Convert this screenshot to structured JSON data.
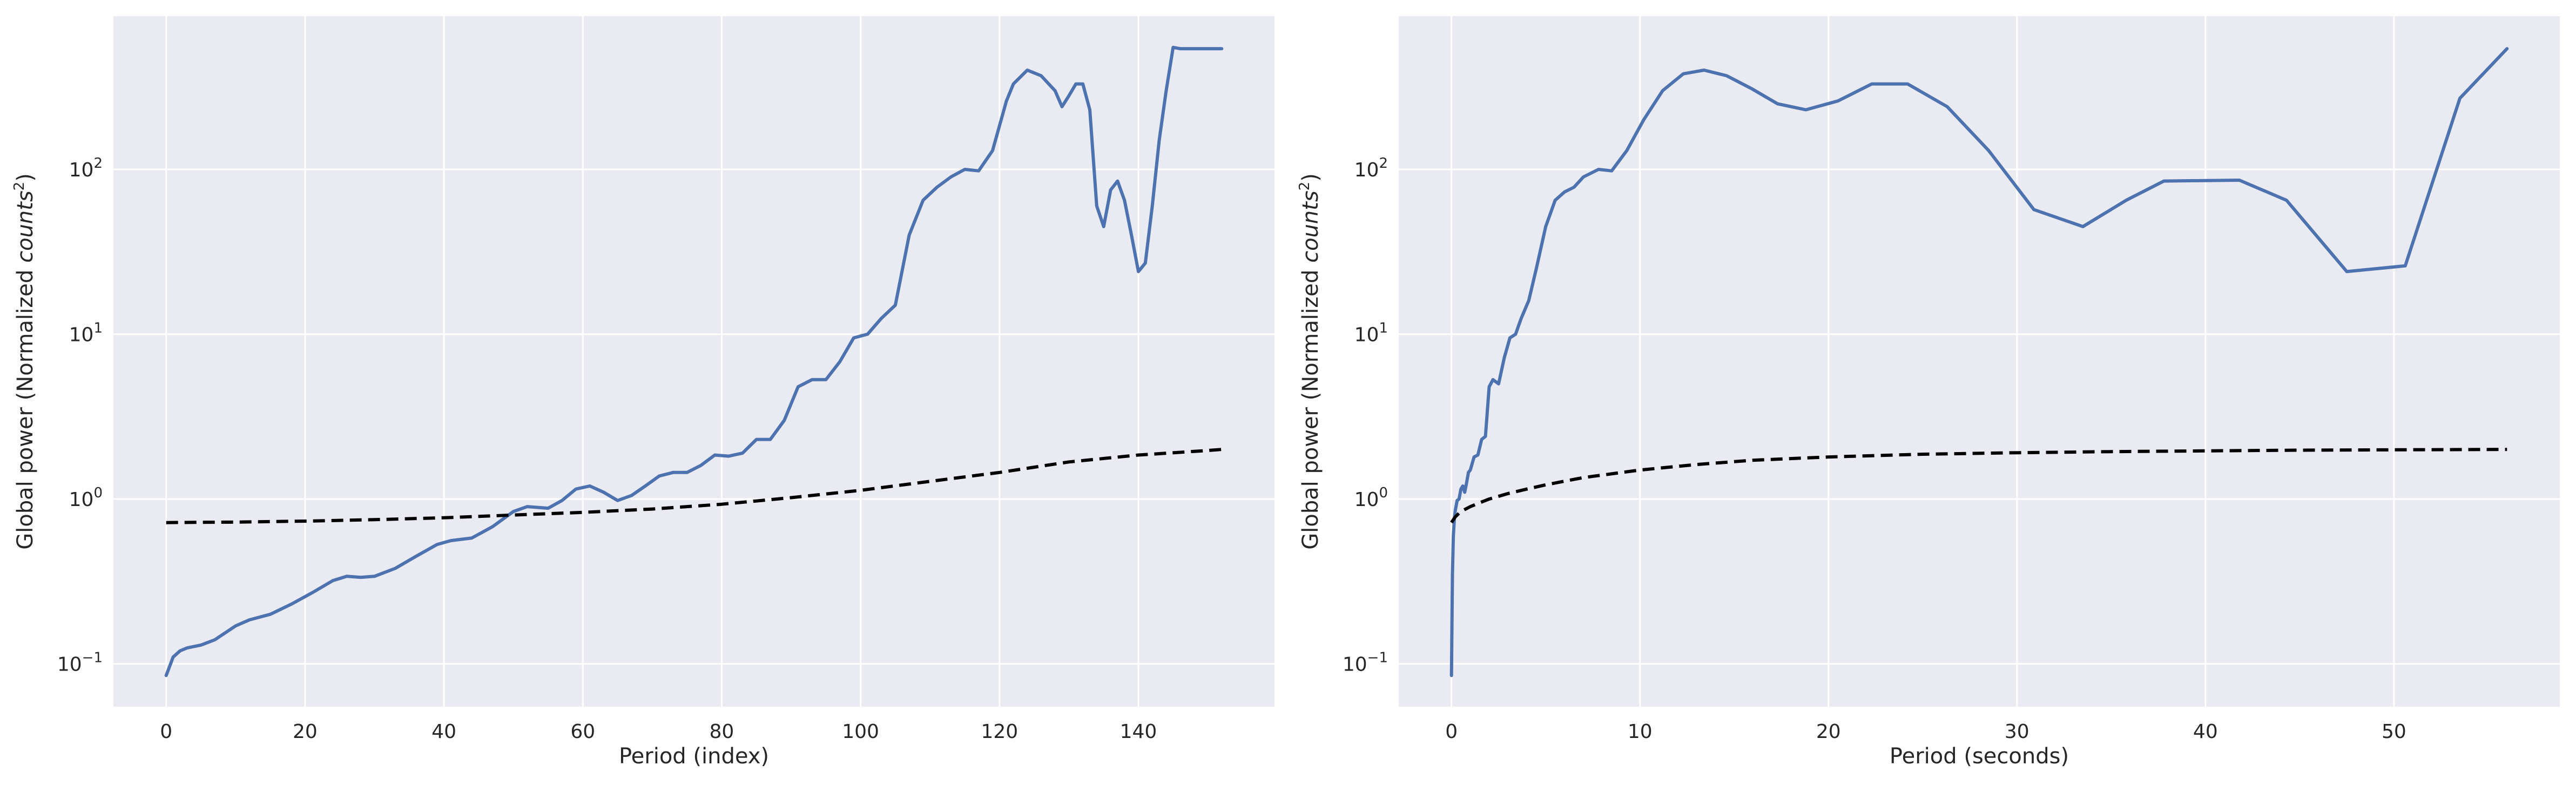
{
  "chart_data": [
    {
      "type": "line",
      "xlabel": "Period (index)",
      "ylabel": "Global power (Normalized counts²)",
      "ylabel_parts": {
        "pre": "Global power (Normalized ",
        "italic": "counts",
        "sup": "2",
        "post": ")"
      },
      "yscale": "log",
      "xlim": [
        -7.6,
        159.6
      ],
      "ylim": [
        0.055,
        850
      ],
      "xticks": [
        0,
        20,
        40,
        60,
        80,
        100,
        120,
        140
      ],
      "yticks": [
        {
          "value": 0.1,
          "base": "10",
          "exp": "−1"
        },
        {
          "value": 1,
          "base": "10",
          "exp": "0"
        },
        {
          "value": 10,
          "base": "10",
          "exp": "1"
        },
        {
          "value": 100,
          "base": "10",
          "exp": "2"
        }
      ],
      "grid": true,
      "background": "#eaeaf2",
      "series": [
        {
          "style": "solid",
          "color": "#4c72b0",
          "x": [
            0,
            1,
            2,
            3,
            5,
            7,
            10,
            12,
            15,
            18,
            21,
            24,
            26,
            28,
            30,
            33,
            36,
            39,
            41,
            44,
            47,
            50,
            52,
            55,
            57,
            59,
            61,
            63,
            65,
            67,
            69,
            71,
            73,
            75,
            77,
            79,
            81,
            83,
            85,
            87,
            89,
            91,
            93,
            95,
            97,
            99,
            101,
            103,
            105,
            107,
            109,
            111,
            113,
            115,
            117,
            119,
            121,
            122,
            124,
            126,
            128,
            129,
            130,
            131,
            132,
            133,
            134,
            135,
            136,
            137,
            138,
            139,
            140,
            141,
            142,
            143,
            144,
            145,
            146,
            147,
            148,
            149,
            150,
            151,
            152
          ],
          "y": [
            0.085,
            0.11,
            0.12,
            0.125,
            0.13,
            0.14,
            0.17,
            0.185,
            0.2,
            0.23,
            0.27,
            0.32,
            0.34,
            0.335,
            0.34,
            0.38,
            0.45,
            0.53,
            0.56,
            0.58,
            0.68,
            0.84,
            0.9,
            0.88,
            0.98,
            1.15,
            1.2,
            1.1,
            0.98,
            1.05,
            1.2,
            1.38,
            1.45,
            1.45,
            1.6,
            1.85,
            1.82,
            1.9,
            2.3,
            2.3,
            3.0,
            4.8,
            5.3,
            5.3,
            6.8,
            9.5,
            10,
            12.5,
            15,
            40,
            65,
            78,
            90,
            100,
            98,
            130,
            260,
            330,
            400,
            370,
            300,
            240,
            280,
            330,
            330,
            230,
            60,
            45,
            75,
            85,
            65,
            40,
            24,
            27,
            60,
            150,
            300,
            550,
            540,
            540,
            540,
            540,
            540,
            540,
            540
          ]
        },
        {
          "style": "dashed",
          "color": "#000000",
          "x": [
            0,
            10,
            20,
            30,
            40,
            50,
            60,
            70,
            80,
            90,
            100,
            110,
            120,
            130,
            140,
            150,
            152
          ],
          "y": [
            0.72,
            0.725,
            0.735,
            0.75,
            0.77,
            0.8,
            0.83,
            0.87,
            0.93,
            1.02,
            1.13,
            1.28,
            1.45,
            1.68,
            1.85,
            1.97,
            2.0
          ]
        }
      ]
    },
    {
      "type": "line",
      "xlabel": "Period (seconds)",
      "ylabel": "Global power (Normalized counts²)",
      "ylabel_parts": {
        "pre": "Global power (Normalized ",
        "italic": "counts",
        "sup": "2",
        "post": ")"
      },
      "yscale": "log",
      "xlim": [
        -2.8,
        58.8
      ],
      "ylim": [
        0.055,
        850
      ],
      "xticks": [
        0,
        10,
        20,
        30,
        40,
        50
      ],
      "yticks": [
        {
          "value": 0.1,
          "base": "10",
          "exp": "−1"
        },
        {
          "value": 1,
          "base": "10",
          "exp": "0"
        },
        {
          "value": 10,
          "base": "10",
          "exp": "1"
        },
        {
          "value": 100,
          "base": "10",
          "exp": "2"
        }
      ],
      "grid": true,
      "background": "#eaeaf2",
      "series": [
        {
          "style": "solid",
          "color": "#4c72b0",
          "x": [
            0,
            0.05,
            0.1,
            0.15,
            0.2,
            0.3,
            0.4,
            0.5,
            0.6,
            0.7,
            0.8,
            0.9,
            1.0,
            1.2,
            1.4,
            1.6,
            1.8,
            2.0,
            2.2,
            2.5,
            2.8,
            3.1,
            3.4,
            3.7,
            4.1,
            4.5,
            5.0,
            5.5,
            6.0,
            6.5,
            7.0,
            7.8,
            8.5,
            9.3,
            10.2,
            11.2,
            12.3,
            13.4,
            14.6,
            15.9,
            17.3,
            18.8,
            20.5,
            22.3,
            24.2,
            26.3,
            28.5,
            30.9,
            33.5,
            35.8,
            37.8,
            41.8,
            44.3,
            47.5,
            50.6,
            53.5,
            56.0
          ],
          "y": [
            0.085,
            0.35,
            0.6,
            0.75,
            0.85,
            0.98,
            1.0,
            1.15,
            1.2,
            1.1,
            1.25,
            1.45,
            1.5,
            1.8,
            1.85,
            2.3,
            2.4,
            4.8,
            5.3,
            5.0,
            7.2,
            9.5,
            10,
            12.5,
            16,
            25,
            45,
            65,
            73,
            78,
            90,
            100,
            98,
            130,
            200,
            300,
            380,
            400,
            370,
            310,
            250,
            230,
            260,
            330,
            330,
            240,
            130,
            57,
            45,
            65,
            85,
            86,
            65,
            24,
            26,
            270,
            540
          ]
        },
        {
          "style": "dashed",
          "color": "#000000",
          "x": [
            0,
            0.2,
            0.5,
            1.0,
            1.5,
            2.0,
            3.0,
            4.0,
            5.0,
            7.0,
            10,
            13,
            16,
            20,
            25,
            30,
            35,
            40,
            45,
            50,
            56
          ],
          "y": [
            0.72,
            0.78,
            0.84,
            0.9,
            0.95,
            1.0,
            1.08,
            1.15,
            1.22,
            1.35,
            1.5,
            1.62,
            1.72,
            1.8,
            1.87,
            1.91,
            1.94,
            1.96,
            1.98,
            1.99,
            2.0
          ]
        }
      ]
    }
  ]
}
